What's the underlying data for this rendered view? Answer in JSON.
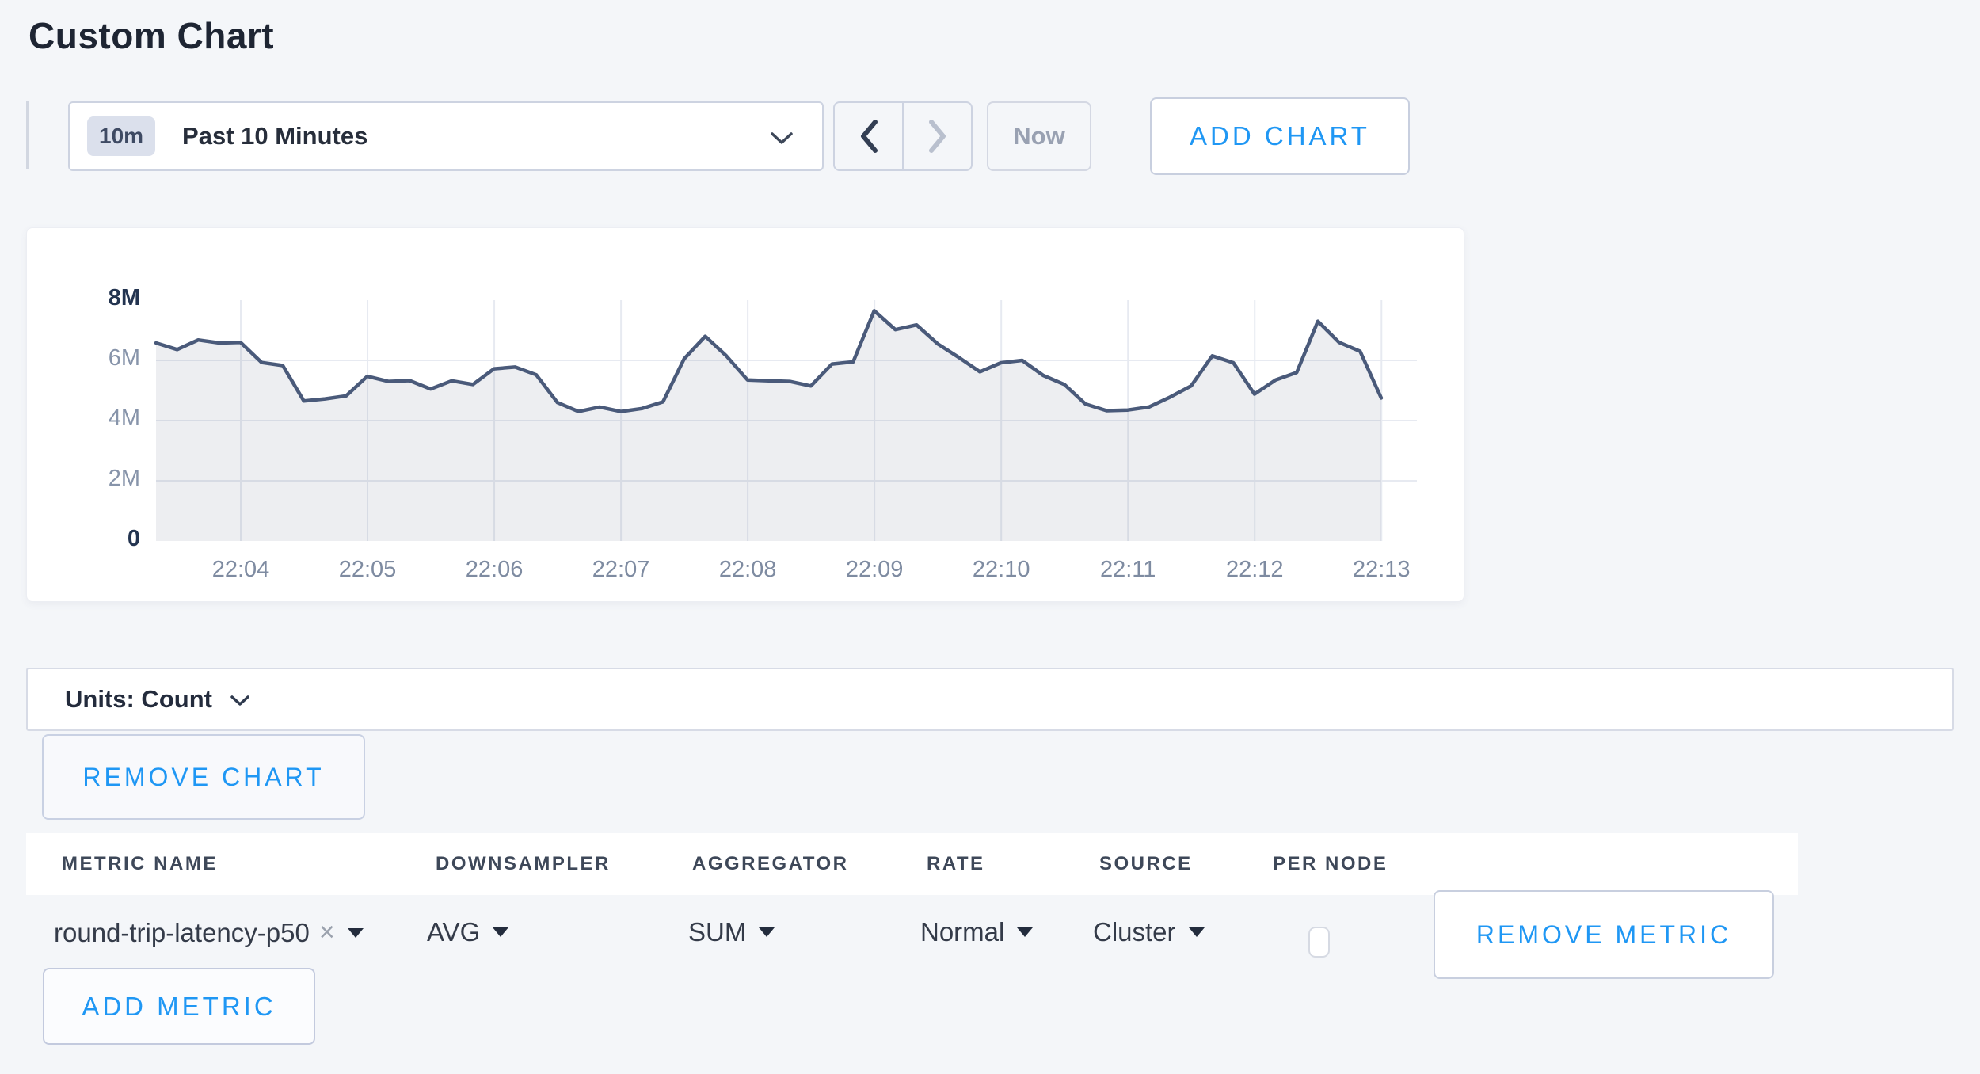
{
  "page": {
    "title": "Custom Chart"
  },
  "toolbar": {
    "time_window": {
      "badge": "10m",
      "label": "Past 10 Minutes"
    },
    "now_label": "Now",
    "add_chart_label": "ADD CHART"
  },
  "chart_data": {
    "type": "area",
    "series": [
      {
        "name": "round-trip-latency-p50",
        "start_time": "22:03:20",
        "interval_seconds": 10,
        "values_millions": [
          6.58,
          6.36,
          6.68,
          6.58,
          6.6,
          5.93,
          5.83,
          4.65,
          4.72,
          4.82,
          5.47,
          5.3,
          5.33,
          5.05,
          5.32,
          5.2,
          5.72,
          5.78,
          5.52,
          4.6,
          4.3,
          4.45,
          4.3,
          4.4,
          4.62,
          6.05,
          6.8,
          6.15,
          5.35,
          5.32,
          5.3,
          5.15,
          5.88,
          5.95,
          7.65,
          7.02,
          7.18,
          6.55,
          6.1,
          5.62,
          5.92,
          6.0,
          5.5,
          5.2,
          4.55,
          4.33,
          4.35,
          4.45,
          4.78,
          5.15,
          6.15,
          5.92,
          4.88,
          5.35,
          5.6,
          7.3,
          6.6,
          6.3,
          4.75
        ]
      }
    ],
    "x_ticks": [
      "22:04",
      "22:05",
      "22:06",
      "22:07",
      "22:08",
      "22:09",
      "22:10",
      "22:11",
      "22:12",
      "22:13"
    ],
    "y_ticks": [
      "0",
      "2M",
      "4M",
      "6M",
      "8M"
    ],
    "ylim_millions": [
      0,
      8
    ],
    "grid": true,
    "legend": "none",
    "line_color": "#4a5a7a",
    "fill_color": "rgba(74,90,122,0.10)",
    "gridline_color": "#e7eaf1"
  },
  "units_bar": {
    "label": "Units: Count"
  },
  "remove_chart_label": "REMOVE CHART",
  "metrics_table": {
    "columns": [
      "METRIC NAME",
      "DOWNSAMPLER",
      "AGGREGATOR",
      "RATE",
      "SOURCE",
      "PER NODE"
    ],
    "rows": [
      {
        "metric_name": "round-trip-latency-p50",
        "downsampler": "AVG",
        "aggregator": "SUM",
        "rate": "Normal",
        "source": "Cluster",
        "per_node_checked": false,
        "remove_label": "REMOVE METRIC"
      }
    ],
    "add_metric_label": "ADD METRIC"
  },
  "icons": {
    "clear": "×"
  },
  "colors": {
    "accent_blue": "#1f97f4",
    "line": "#4a5a7a",
    "page_background": "#f4f6f9",
    "tick_gray": "#7e8ba1",
    "tick_dark": "#233450"
  }
}
